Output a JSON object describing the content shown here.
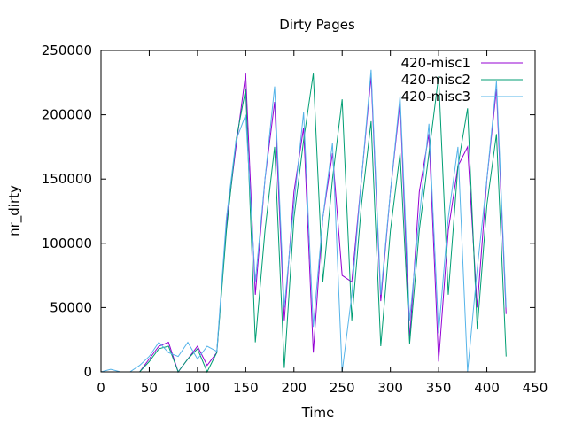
{
  "chart_data": {
    "type": "line",
    "title": "Dirty Pages",
    "xlabel": "Time",
    "ylabel": "nr_dirty",
    "xlim": [
      0,
      450
    ],
    "ylim": [
      0,
      250000
    ],
    "x_ticks": [
      0,
      50,
      100,
      150,
      200,
      250,
      300,
      350,
      400,
      450
    ],
    "y_ticks": [
      0,
      50000,
      100000,
      150000,
      200000,
      250000
    ],
    "x_tick_labels": [
      "0",
      "50",
      "100",
      "150",
      "200",
      "250",
      "300",
      "350",
      "400",
      "450"
    ],
    "y_tick_labels": [
      "0",
      "50000",
      "100000",
      "150000",
      "200000",
      "250000"
    ],
    "grid": false,
    "legend_position": "top-right",
    "series": [
      {
        "name": "420-misc1",
        "color": "#9400d3",
        "x": [
          0,
          10,
          20,
          30,
          40,
          50,
          60,
          70,
          80,
          90,
          100,
          110,
          120,
          130,
          140,
          150,
          160,
          170,
          180,
          190,
          200,
          210,
          220,
          230,
          240,
          250,
          260,
          270,
          280,
          290,
          300,
          310,
          320,
          330,
          340,
          350,
          360,
          370,
          380,
          390,
          400,
          410,
          420
        ],
        "values": [
          0,
          0,
          0,
          0,
          0,
          10000,
          20000,
          23000,
          0,
          10000,
          20000,
          5000,
          15000,
          115000,
          175000,
          232000,
          60000,
          150000,
          210000,
          40000,
          140000,
          190000,
          15000,
          120000,
          170000,
          75000,
          70000,
          150000,
          230000,
          55000,
          140000,
          210000,
          25000,
          140000,
          185000,
          8000,
          110000,
          160000,
          175000,
          50000,
          150000,
          220000,
          45000
        ]
      },
      {
        "name": "420-misc2",
        "color": "#009e73",
        "x": [
          0,
          10,
          20,
          30,
          40,
          50,
          60,
          70,
          80,
          90,
          100,
          110,
          120,
          130,
          140,
          150,
          160,
          170,
          180,
          190,
          200,
          210,
          220,
          230,
          240,
          250,
          260,
          270,
          280,
          290,
          300,
          310,
          320,
          330,
          340,
          350,
          360,
          370,
          380,
          390,
          400,
          410,
          420
        ],
        "values": [
          0,
          0,
          0,
          0,
          0,
          8000,
          18000,
          20000,
          0,
          10000,
          18000,
          0,
          15000,
          110000,
          180000,
          220000,
          23000,
          110000,
          175000,
          3000,
          120000,
          180000,
          232000,
          70000,
          150000,
          212000,
          40000,
          130000,
          195000,
          20000,
          110000,
          170000,
          22000,
          110000,
          170000,
          230000,
          60000,
          160000,
          205000,
          33000,
          130000,
          185000,
          12000
        ]
      },
      {
        "name": "420-misc3",
        "color": "#56b4e9",
        "x": [
          0,
          10,
          20,
          30,
          40,
          50,
          60,
          70,
          80,
          90,
          100,
          110,
          120,
          130,
          140,
          150,
          160,
          170,
          180,
          190,
          200,
          210,
          220,
          230,
          240,
          250,
          260,
          270,
          280,
          290,
          300,
          310,
          320,
          330,
          340,
          350,
          360,
          370,
          380,
          390,
          400,
          410,
          420
        ],
        "values": [
          0,
          2000,
          0,
          0,
          5000,
          12000,
          23000,
          15000,
          12000,
          23000,
          10000,
          20000,
          16000,
          120000,
          180000,
          200000,
          70000,
          150000,
          222000,
          50000,
          130000,
          202000,
          35000,
          120000,
          178000,
          0,
          60000,
          150000,
          235000,
          60000,
          140000,
          215000,
          40000,
          120000,
          193000,
          30000,
          120000,
          175000,
          0,
          80000,
          150000,
          226000,
          50000
        ]
      }
    ]
  }
}
